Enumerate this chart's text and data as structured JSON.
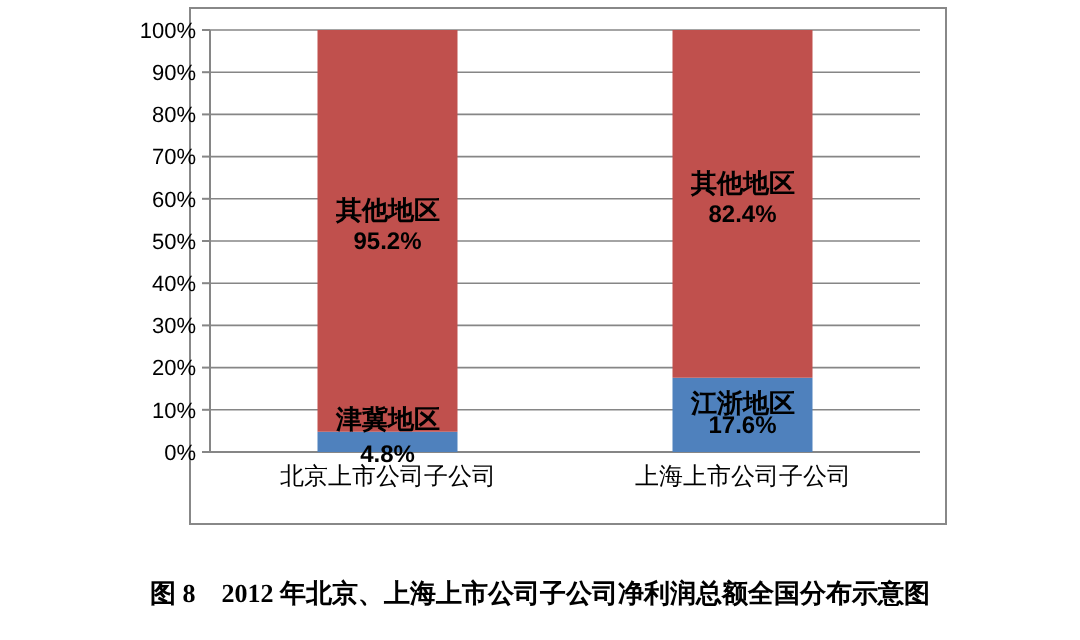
{
  "chart_data": {
    "type": "bar",
    "stacked": true,
    "title": "图 8　2012 年北京、上海上市公司子公司净利润总额全国分布示意图",
    "categories": [
      "北京上市公司子公司",
      "上海上市公司子公司"
    ],
    "series": [
      {
        "color": "#4f81bd",
        "values": [
          4.8,
          17.6
        ],
        "value_labels": [
          "4.8%",
          "17.6%"
        ]
      },
      {
        "name": "其他地区",
        "color": "#c0504d",
        "values": [
          95.2,
          82.4
        ],
        "value_labels": [
          "95.2%",
          "82.4%"
        ]
      }
    ],
    "annotations": [
      {
        "text": "津冀地区",
        "x": "北京上市公司子公司",
        "y": 4.8
      },
      {
        "text": "江浙地区",
        "x": "上海上市公司子公司",
        "y": 17.6
      }
    ],
    "ylim": [
      0,
      100
    ],
    "yticks": [
      {
        "value": 0,
        "label": "0%"
      },
      {
        "value": 10,
        "label": "10%"
      },
      {
        "value": 20,
        "label": "20%"
      },
      {
        "value": 30,
        "label": "30%"
      },
      {
        "value": 40,
        "label": "40%"
      },
      {
        "value": 50,
        "label": "50%"
      },
      {
        "value": 60,
        "label": "60%"
      },
      {
        "value": 70,
        "label": "70%"
      },
      {
        "value": 80,
        "label": "80%"
      },
      {
        "value": 90,
        "label": "90%"
      },
      {
        "value": 100,
        "label": "100%"
      }
    ],
    "grid": "y"
  }
}
